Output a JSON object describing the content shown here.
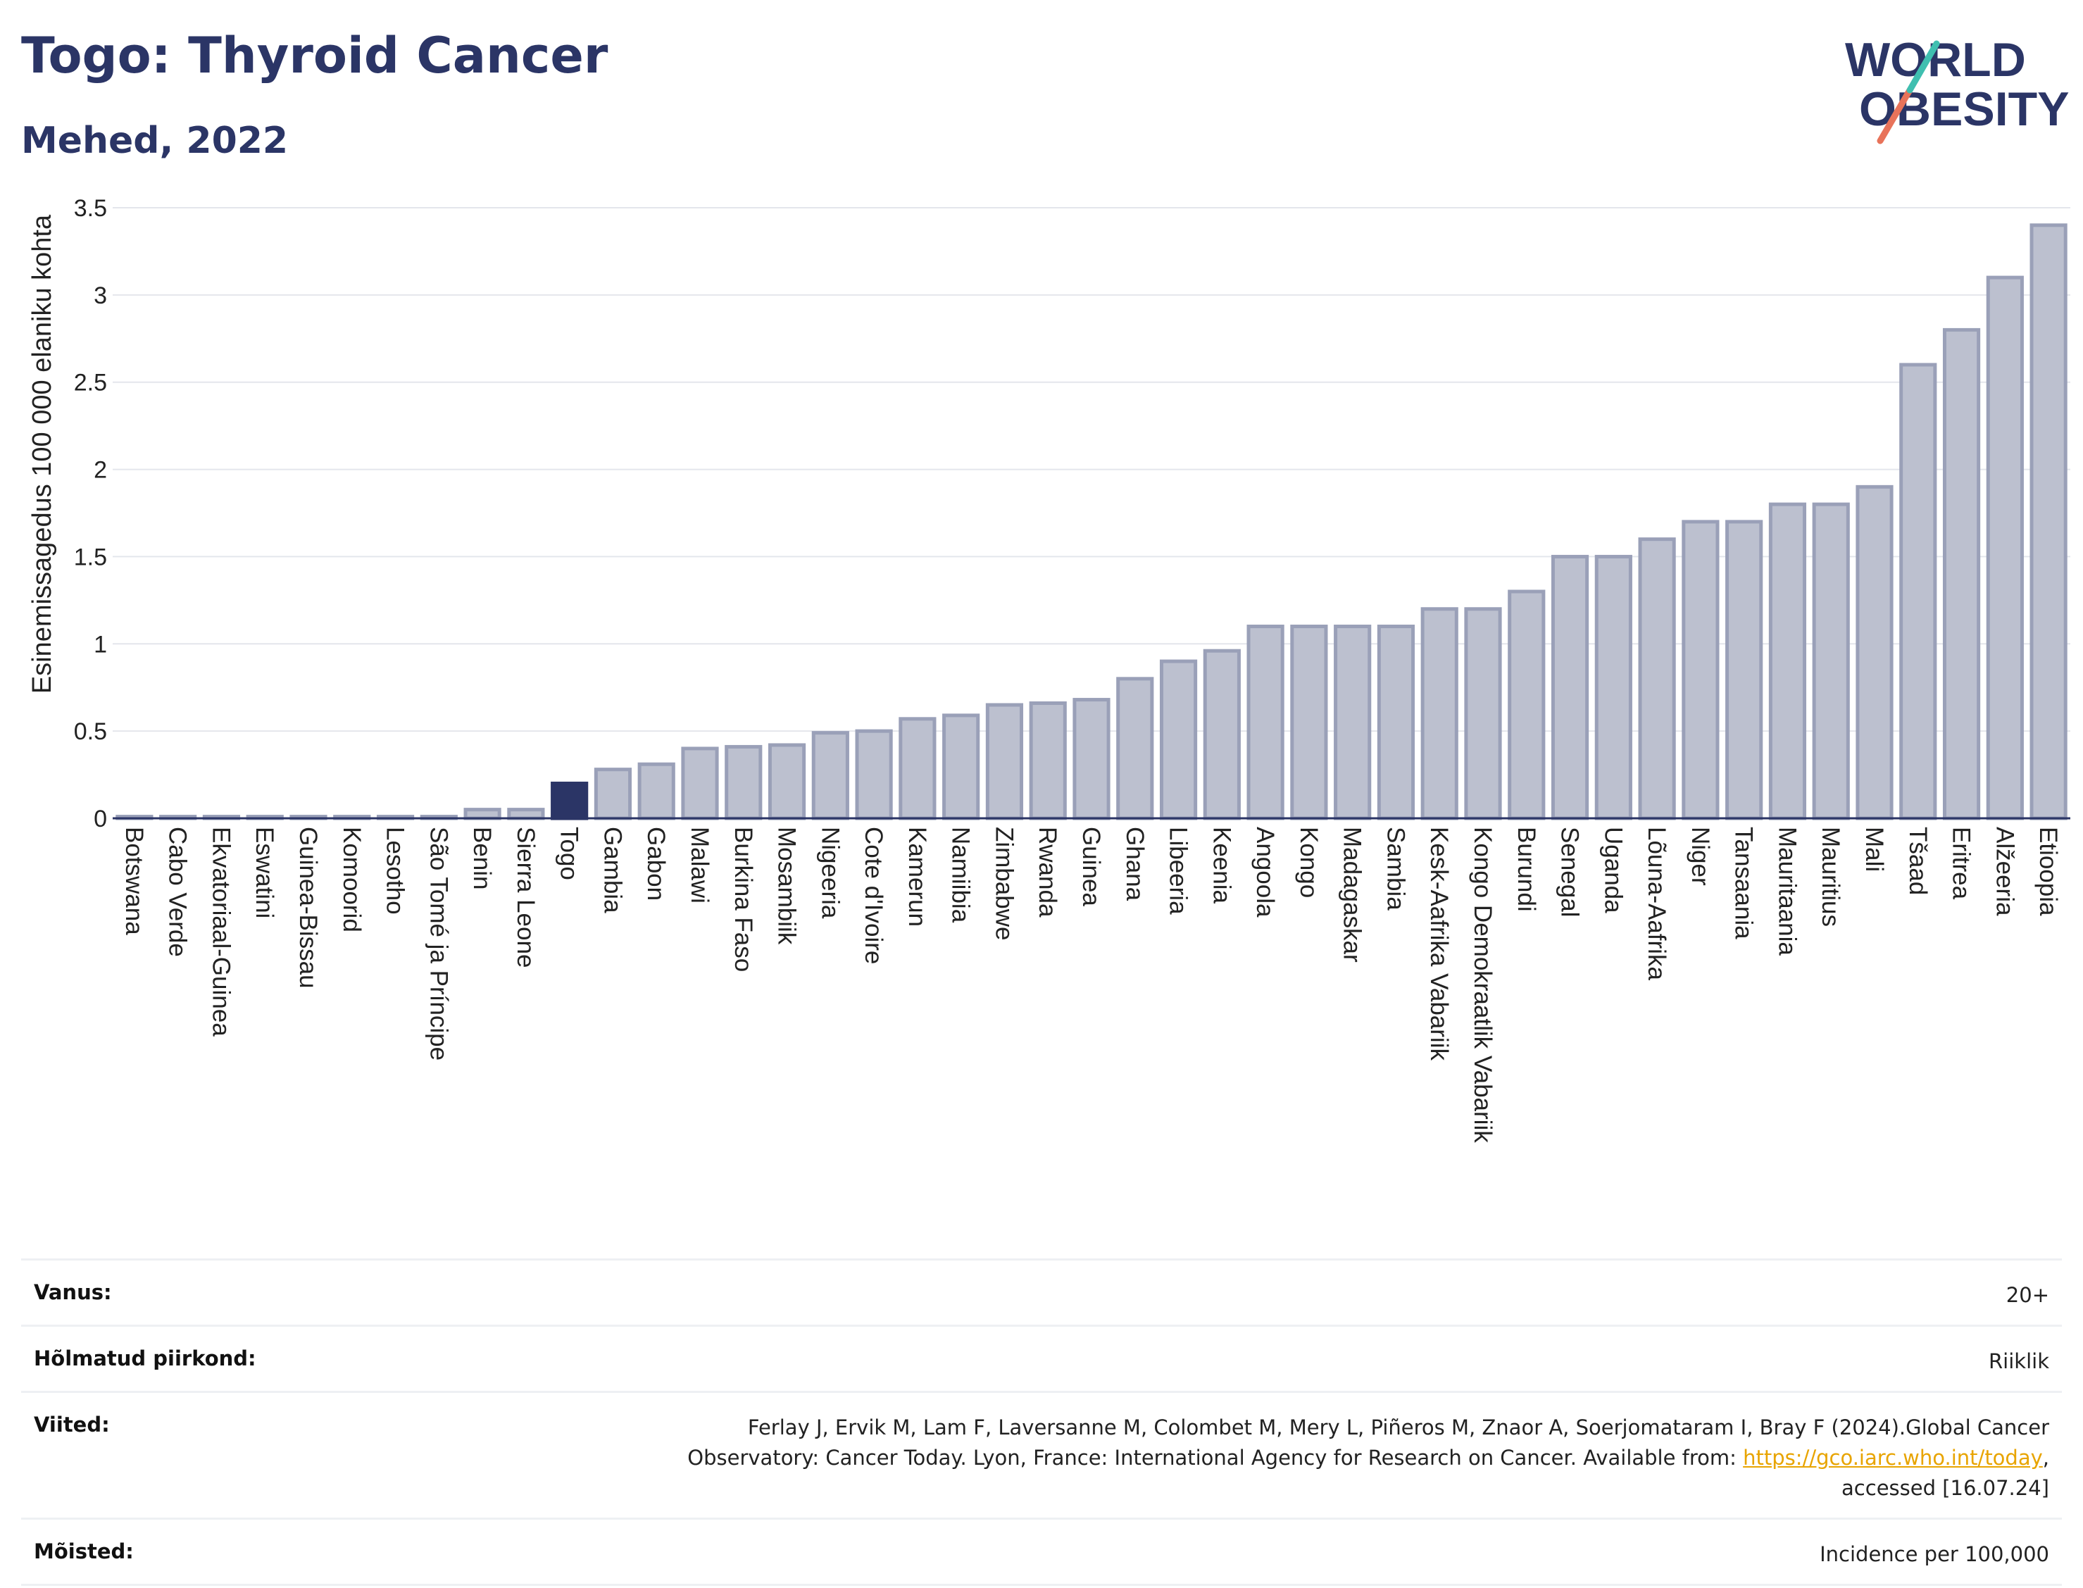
{
  "header": {
    "title": "Togo: Thyroid Cancer",
    "subtitle": "Mehed, 2022"
  },
  "logo": {
    "line1": "WORLD",
    "line2": "OBESITY"
  },
  "chart_data": {
    "type": "bar",
    "ylabel": "Esinemissagedus 100 000 elaniku kohta",
    "xlabel": "",
    "ylim": [
      0,
      3.5
    ],
    "yticks": [
      0,
      0.5,
      1,
      1.5,
      2,
      2.5,
      3,
      3.5
    ],
    "ytick_labels": [
      "0",
      "0.5",
      "1",
      "1.5",
      "2",
      "2.5",
      "3",
      "3.5"
    ],
    "grid": true,
    "highlight": "Togo",
    "highlight_color": "#2b3566",
    "bar_color": "#bcc0cf",
    "bar_edge_color": "#9aa0b8",
    "categories": [
      "Botswana",
      "Cabo Verde",
      "Ekvatoriaal-Guinea",
      "Eswatini",
      "Guinea-Bissau",
      "Komoorid",
      "Lesotho",
      "São Tomé ja Príncipe",
      "Benin",
      "Sierra Leone",
      "Togo",
      "Gambia",
      "Gabon",
      "Malawi",
      "Burkina Faso",
      "Mosambiik",
      "Nigeeria",
      "Cote d'Ivoire",
      "Kamerun",
      "Namiibia",
      "Zimbabwe",
      "Rwanda",
      "Guinea",
      "Ghana",
      "Libeeria",
      "Keenia",
      "Angoola",
      "Kongo",
      "Madagaskar",
      "Sambia",
      "Kesk-Aafrika Vabariik",
      "Kongo Demokraatlik Vabariik",
      "Burundi",
      "Senegal",
      "Uganda",
      "Lõuna-Aafrika",
      "Niger",
      "Tansaania",
      "Mauritaania",
      "Mauritius",
      "Mali",
      "Tšaad",
      "Eritrea",
      "Alžeeria",
      "Etioopia"
    ],
    "values": [
      0.01,
      0.01,
      0.01,
      0.01,
      0.01,
      0.01,
      0.01,
      0.01,
      0.05,
      0.05,
      0.2,
      0.28,
      0.31,
      0.4,
      0.41,
      0.42,
      0.49,
      0.5,
      0.57,
      0.59,
      0.65,
      0.66,
      0.68,
      0.8,
      0.9,
      0.96,
      1.1,
      1.1,
      1.1,
      1.1,
      1.2,
      1.2,
      1.3,
      1.5,
      1.5,
      1.6,
      1.7,
      1.7,
      1.8,
      1.8,
      1.9,
      2.6,
      2.8,
      3.1,
      3.4
    ]
  },
  "meta": {
    "age_label": "Vanus:",
    "age_value": "20+",
    "region_label": "Hõlmatud piirkond:",
    "region_value": "Riiklik",
    "refs_label": "Viited:",
    "refs_text_1": "Ferlay J, Ervik M, Lam F, Laversanne M, Colombet M, Mery L, Piñeros M, Znaor A, Soerjomataram I, Bray F (2024).Global Cancer",
    "refs_text_2": "Observatory: Cancer Today. Lyon, France: International Agency for Research on Cancer. Available from: ",
    "refs_link": "https://gco.iarc.who.int/today",
    "refs_text_3": ",",
    "refs_text_4": "accessed [16.07.24]",
    "defs_label": "Mõisted:",
    "defs_value": "Incidence per 100,000"
  }
}
